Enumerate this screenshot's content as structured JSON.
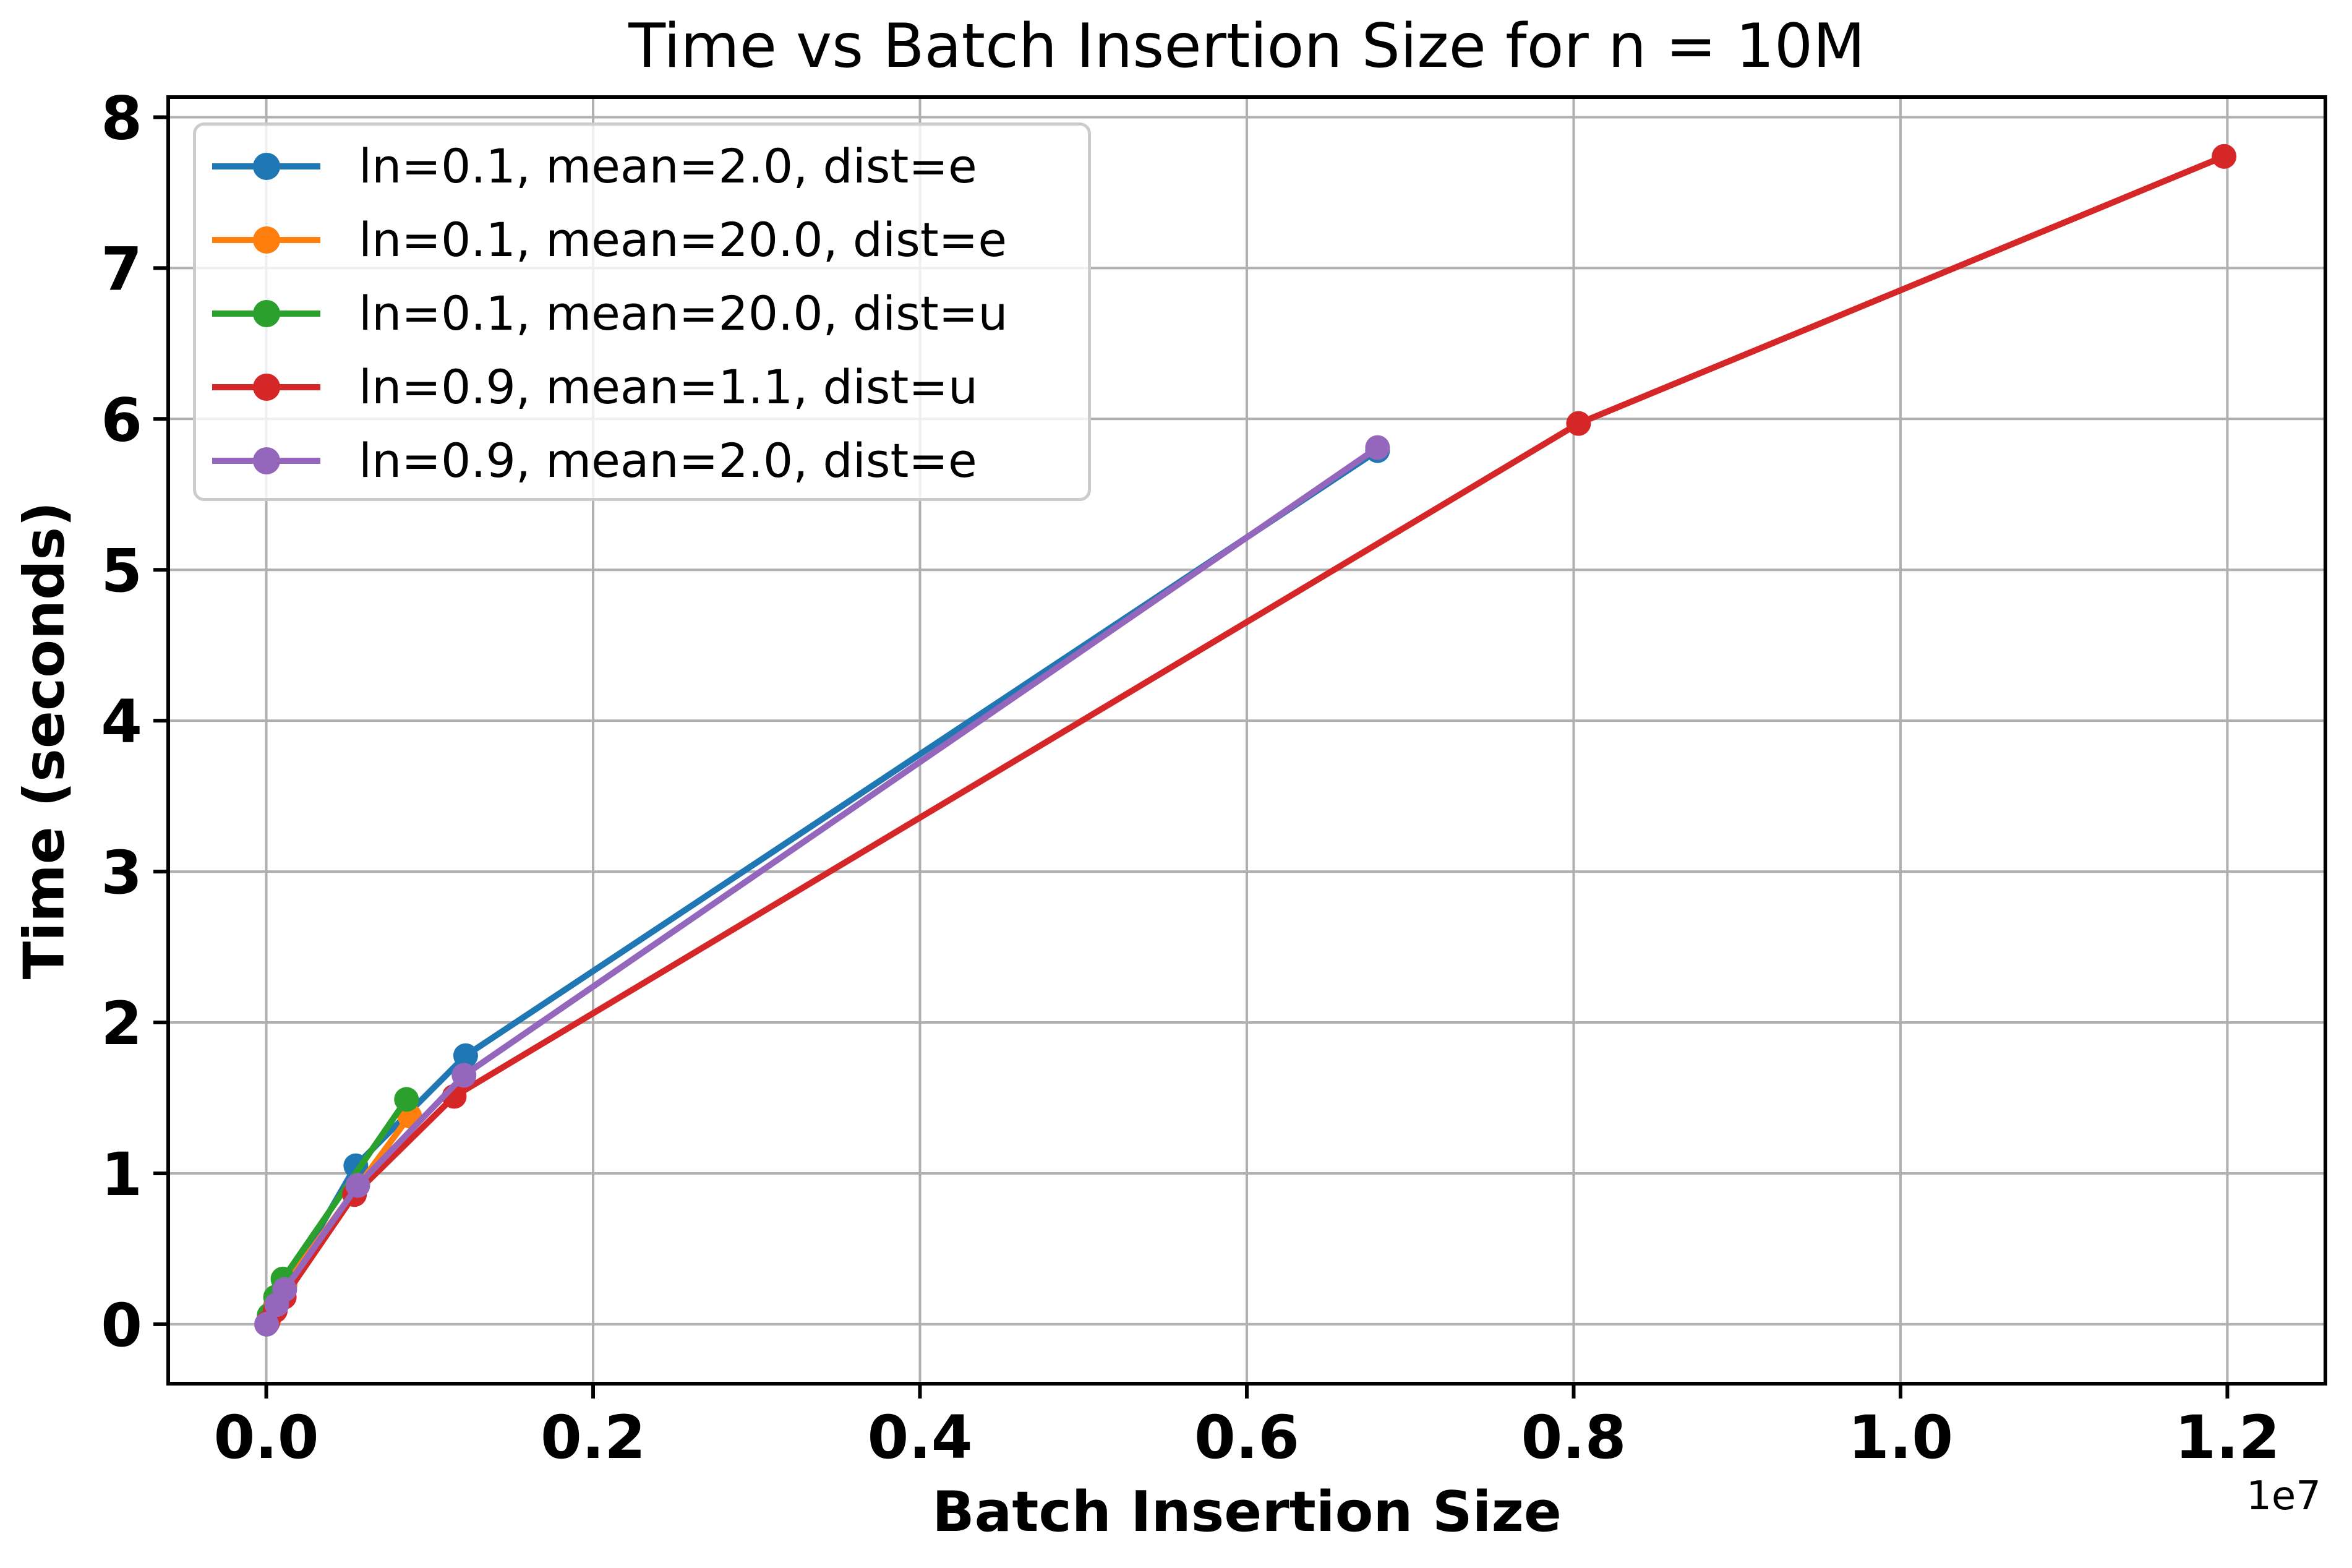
{
  "chart_data": {
    "type": "line",
    "title": "Time vs Batch Insertion Size for n = 10M",
    "xlabel": "Batch Insertion Size",
    "ylabel": "Time (seconds)",
    "offset_text": "1e7",
    "grid": true,
    "legend_position": "upper left",
    "xlim": [
      -600000,
      12600000
    ],
    "ylim": [
      -0.394,
      8.133
    ],
    "x_ticks": [
      0,
      2000000,
      4000000,
      6000000,
      8000000,
      10000000,
      12000000
    ],
    "x_tick_labels": [
      "0.0",
      "0.2",
      "0.4",
      "0.6",
      "0.8",
      "1.0",
      "1.2"
    ],
    "y_ticks": [
      0,
      1,
      2,
      3,
      4,
      5,
      6,
      7,
      8
    ],
    "y_tick_labels": [
      "0",
      "1",
      "2",
      "3",
      "4",
      "5",
      "6",
      "7",
      "8"
    ],
    "colors": {
      "grid": "#b0b0b0",
      "spine": "#000000",
      "legend_border": "#cccccc",
      "background": "#ffffff"
    },
    "series": [
      {
        "name": "ln=0.1, mean=2.0, dist=e",
        "color": "#1f77b4",
        "x": [
          20000,
          60000,
          105000,
          548000,
          1220000,
          6800000
        ],
        "y": [
          0.05,
          0.13,
          0.22,
          1.05,
          1.78,
          5.79
        ]
      },
      {
        "name": "ln=0.1, mean=20.0, dist=e",
        "color": "#ff7f0e",
        "x": [
          15000,
          55000,
          115000,
          877000
        ],
        "y": [
          0.03,
          0.12,
          0.26,
          1.38
        ]
      },
      {
        "name": "ln=0.1, mean=20.0, dist=u",
        "color": "#2ca02c",
        "x": [
          18000,
          57000,
          102000,
          858000
        ],
        "y": [
          0.06,
          0.18,
          0.3,
          1.49
        ]
      },
      {
        "name": "ln=0.9, mean=1.1, dist=u",
        "color": "#d62728",
        "x": [
          8000,
          55000,
          110000,
          540000,
          1150000,
          8030000,
          11980000
        ],
        "y": [
          0.01,
          0.09,
          0.18,
          0.86,
          1.51,
          5.97,
          7.74
        ]
      },
      {
        "name": "ln=0.9, mean=2.0, dist=e",
        "color": "#9467bd",
        "x": [
          2000,
          64000,
          113000,
          560000,
          1210000,
          6800000
        ],
        "y": [
          0.0,
          0.13,
          0.23,
          0.92,
          1.65,
          5.81
        ]
      }
    ]
  }
}
